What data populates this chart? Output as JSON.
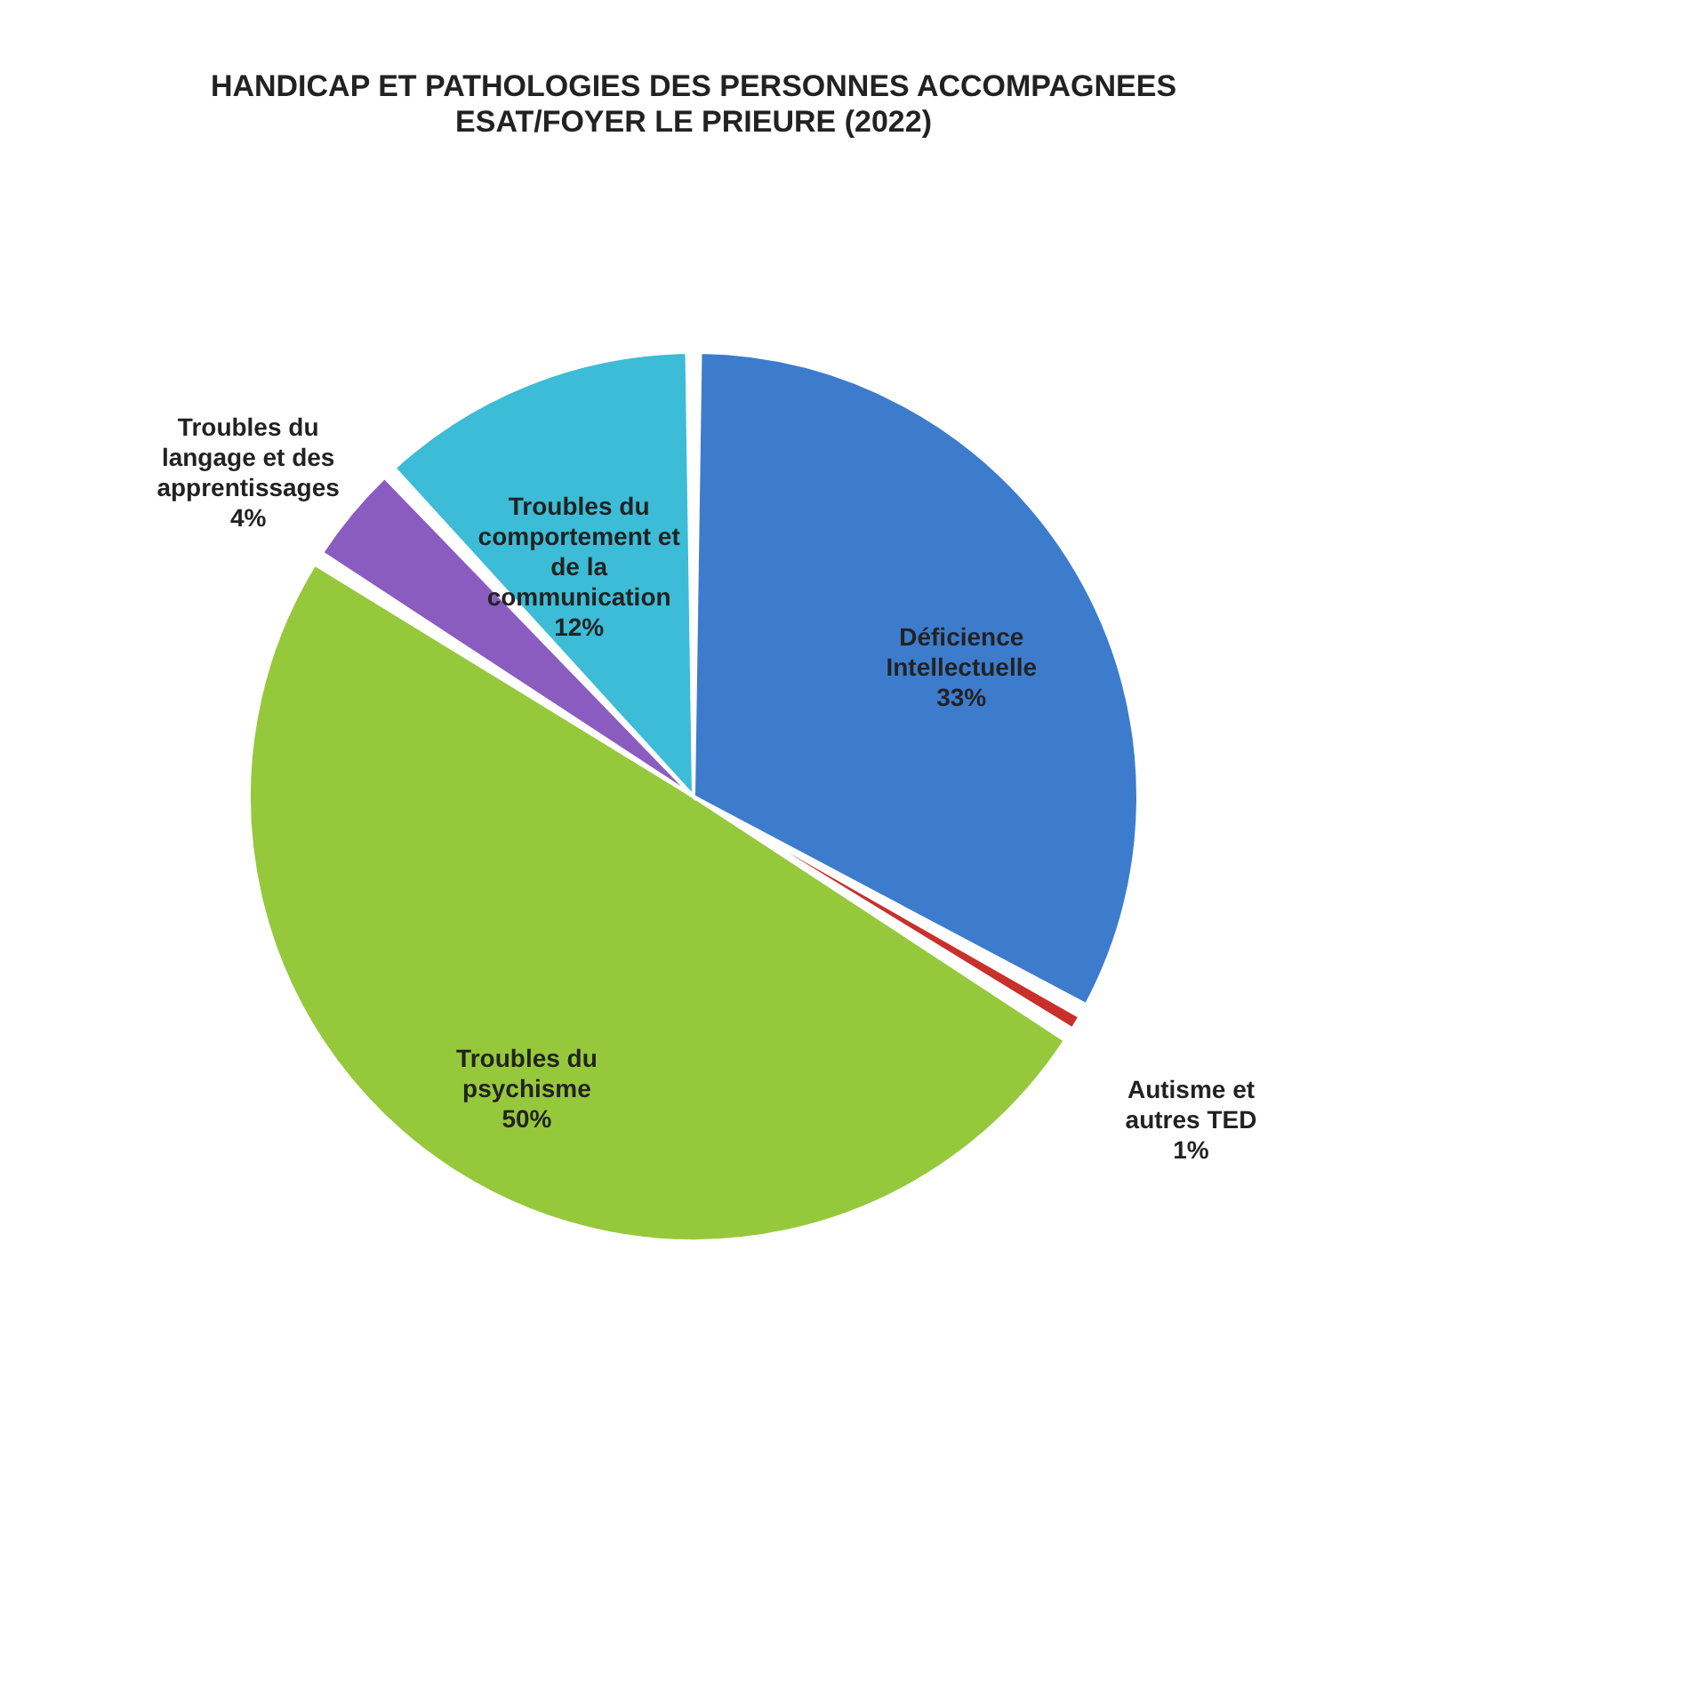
{
  "chart_data": {
    "type": "pie",
    "title": "HANDICAP ET PATHOLOGIES DES PERSONNES ACCOMPAGNEES",
    "subtitle": "ESAT/FOYER LE PRIEURE (2022)",
    "categories": [
      "Déficience Intellectuelle",
      "Autisme et autres TED",
      "Troubles du psychisme",
      "Troubles du langage et des apprentissages",
      "Troubles du comportement et de la communication"
    ],
    "values": [
      33,
      1,
      50,
      4,
      12
    ],
    "value_labels": [
      "33%",
      "1%",
      "50%",
      "4%",
      "12%"
    ],
    "colors": [
      "#3d7ccc",
      "#c8302c",
      "#96c83c",
      "#8b5cc0",
      "#3cbcd6"
    ],
    "legend": false
  }
}
